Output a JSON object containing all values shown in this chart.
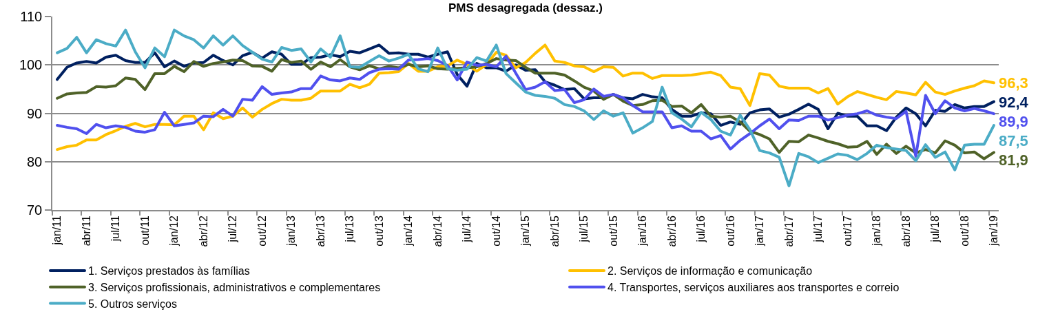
{
  "chart_data": {
    "type": "line",
    "title": "PMS desagregada (dessaz.)",
    "categories": [
      "jan/11",
      null,
      null,
      "abr/11",
      null,
      null,
      "jul/11",
      null,
      null,
      "out/11",
      null,
      null,
      "jan/12",
      null,
      null,
      "abr/12",
      null,
      null,
      "jul/12",
      null,
      null,
      "out/12",
      null,
      null,
      "jan/13",
      null,
      null,
      "abr/13",
      null,
      null,
      "jul/13",
      null,
      null,
      "out/13",
      null,
      null,
      "jan/14",
      null,
      null,
      "abr/14",
      null,
      null,
      "jul/14",
      null,
      null,
      "out/14",
      null,
      null,
      "jan/15",
      null,
      null,
      "abr/15",
      null,
      null,
      "jul/15",
      null,
      null,
      "out/15",
      null,
      null,
      "jan/16",
      null,
      null,
      "abr/16",
      null,
      null,
      "jul/16",
      null,
      null,
      "out/16",
      null,
      null,
      "jan/17",
      null,
      null,
      "abr/17",
      null,
      null,
      "jul/17",
      null,
      null,
      "out/17",
      null,
      null,
      "jan/18",
      null,
      null,
      "abr/18",
      null,
      null,
      "jul/18",
      null,
      null,
      "out/18",
      null,
      null,
      "jan/19"
    ],
    "ylim": [
      70,
      110
    ],
    "yticks": [
      70,
      80,
      90,
      100,
      110
    ],
    "grid": "y",
    "legend": "bottom",
    "series": [
      {
        "name": "1. Serviços prestados às famílias",
        "color": "#002060",
        "values": [
          97.0,
          99.5,
          100.4,
          100.7,
          100.4,
          101.6,
          102.0,
          100.9,
          100.5,
          100.5,
          102.5,
          99.6,
          100.8,
          99.7,
          100.4,
          100.5,
          102.0,
          100.9,
          100.0,
          101.9,
          102.6,
          101.4,
          102.7,
          102.2,
          100.1,
          100.1,
          101.5,
          101.6,
          102.1,
          101.7,
          102.8,
          102.5,
          103.3,
          104.1,
          102.4,
          102.5,
          102.2,
          102.2,
          101.6,
          102.2,
          102.7,
          98.0,
          95.6,
          100.3,
          99.4,
          99.4,
          98.7,
          100.0,
          98.9,
          99.0,
          96.5,
          95.8,
          94.9,
          95.1,
          93.0,
          93.2,
          93.2,
          93.9,
          93.2,
          93.0,
          93.9,
          93.4,
          93.2,
          90.8,
          89.4,
          89.4,
          90.1,
          89.9,
          87.5,
          88.2,
          87.7,
          90.1,
          90.7,
          90.9,
          89.2,
          89.8,
          90.8,
          91.9,
          90.8,
          86.8,
          90.0,
          89.4,
          89.4,
          87.4,
          87.4,
          86.4,
          89.2,
          91.1,
          89.9,
          87.4,
          90.6,
          90.4,
          91.8,
          91.1,
          91.4,
          91.4,
          92.4
        ],
        "value_labels": [
          null,
          null,
          null,
          null,
          null,
          null,
          null,
          null,
          null,
          null,
          null,
          null,
          null,
          null,
          null,
          null,
          null,
          null,
          null,
          null,
          null,
          null,
          null,
          null,
          null,
          null,
          null,
          null,
          null,
          null,
          null,
          null,
          null,
          null,
          null,
          null,
          null,
          null,
          null,
          null,
          null,
          null,
          null,
          null,
          null,
          null,
          null,
          null,
          null,
          null,
          null,
          null,
          null,
          null,
          null,
          null,
          null,
          null,
          null,
          null,
          null,
          null,
          null,
          null,
          null,
          null,
          null,
          null,
          null,
          null,
          null,
          null,
          null,
          null,
          null,
          null,
          null,
          null,
          null,
          null,
          null,
          null,
          null,
          null,
          null,
          null,
          null,
          null,
          null,
          null,
          null,
          null,
          null,
          null,
          null,
          null,
          "92,4"
        ]
      },
      {
        "name": "2. Serviços de informação e comunicação",
        "color": "#FFC000",
        "values": [
          82.5,
          83.1,
          83.4,
          84.5,
          84.5,
          85.6,
          86.4,
          87.3,
          87.9,
          87.2,
          87.7,
          87.7,
          87.6,
          89.4,
          89.4,
          86.6,
          90.1,
          88.9,
          89.4,
          91.1,
          89.2,
          90.8,
          92.0,
          92.9,
          92.7,
          92.7,
          93.1,
          94.6,
          94.6,
          94.6,
          96.0,
          95.3,
          96.0,
          98.3,
          98.4,
          98.6,
          100.3,
          98.7,
          98.7,
          99.6,
          99.8,
          101.0,
          100.1,
          98.7,
          100.1,
          102.6,
          102.0,
          99.4,
          100.5,
          102.4,
          104.1,
          100.8,
          100.5,
          99.8,
          99.6,
          98.6,
          99.6,
          99.5,
          97.7,
          98.3,
          98.3,
          97.2,
          97.8,
          97.8,
          97.8,
          97.9,
          98.2,
          98.5,
          97.8,
          95.4,
          95.1,
          91.6,
          98.2,
          97.9,
          95.6,
          95.2,
          95.2,
          95.2,
          94.2,
          95.1,
          91.9,
          93.4,
          94.5,
          93.9,
          93.3,
          92.8,
          94.5,
          94.2,
          93.8,
          96.4,
          94.4,
          93.9,
          94.6,
          95.2,
          95.7,
          96.7,
          96.3
        ],
        "value_labels": [
          null,
          null,
          null,
          null,
          null,
          null,
          null,
          null,
          null,
          null,
          null,
          null,
          null,
          null,
          null,
          null,
          null,
          null,
          null,
          null,
          null,
          null,
          null,
          null,
          null,
          null,
          null,
          null,
          null,
          null,
          null,
          null,
          null,
          null,
          null,
          null,
          null,
          null,
          null,
          null,
          null,
          null,
          null,
          null,
          null,
          null,
          null,
          null,
          null,
          null,
          null,
          null,
          null,
          null,
          null,
          null,
          null,
          null,
          null,
          null,
          null,
          null,
          null,
          null,
          null,
          null,
          null,
          null,
          null,
          null,
          null,
          null,
          null,
          null,
          null,
          null,
          null,
          null,
          null,
          null,
          null,
          null,
          null,
          null,
          null,
          null,
          null,
          null,
          null,
          null,
          null,
          null,
          null,
          null,
          null,
          null,
          "96,3"
        ]
      },
      {
        "name": "3. Serviços profissionais, administrativos e complementares",
        "color": "#4F6228",
        "values": [
          93.1,
          94.0,
          94.2,
          94.3,
          95.5,
          95.4,
          95.7,
          97.3,
          97.0,
          94.9,
          98.2,
          98.2,
          99.7,
          98.6,
          100.7,
          99.7,
          100.3,
          100.6,
          101.0,
          100.9,
          99.8,
          99.7,
          98.7,
          101.1,
          100.5,
          100.8,
          99.1,
          100.6,
          99.6,
          101.1,
          99.6,
          99.0,
          99.8,
          99.2,
          99.7,
          99.4,
          100.1,
          99.6,
          99.8,
          99.2,
          99.1,
          99.3,
          99.4,
          99.6,
          100.3,
          101.3,
          101.0,
          100.9,
          99.5,
          98.3,
          98.3,
          98.3,
          97.9,
          96.7,
          95.4,
          94.6,
          92.9,
          93.9,
          92.5,
          91.6,
          91.8,
          92.6,
          92.7,
          91.4,
          91.5,
          90.1,
          91.8,
          89.4,
          89.2,
          89.4,
          88.2,
          86.3,
          85.6,
          84.7,
          81.9,
          84.2,
          84.1,
          85.5,
          84.9,
          84.2,
          83.7,
          83.0,
          83.1,
          84.2,
          81.5,
          83.6,
          81.7,
          83.2,
          81.8,
          82.5,
          81.8,
          84.3,
          83.4,
          81.8,
          82.0,
          80.6,
          81.9
        ],
        "value_labels": [
          null,
          null,
          null,
          null,
          null,
          null,
          null,
          null,
          null,
          null,
          null,
          null,
          null,
          null,
          null,
          null,
          null,
          null,
          null,
          null,
          null,
          null,
          null,
          null,
          null,
          null,
          null,
          null,
          null,
          null,
          null,
          null,
          null,
          null,
          null,
          null,
          null,
          null,
          null,
          null,
          null,
          null,
          null,
          null,
          null,
          null,
          null,
          null,
          null,
          null,
          null,
          null,
          null,
          null,
          null,
          null,
          null,
          null,
          null,
          null,
          null,
          null,
          null,
          null,
          null,
          null,
          null,
          null,
          null,
          null,
          null,
          null,
          null,
          null,
          null,
          null,
          null,
          null,
          null,
          null,
          null,
          null,
          null,
          null,
          null,
          null,
          null,
          null,
          null,
          null,
          null,
          null,
          null,
          null,
          null,
          null,
          "81,9"
        ]
      },
      {
        "name": "4. Transportes, serviços auxiliares aos transportes e correio",
        "color": "#5050EE",
        "values": [
          87.5,
          87.1,
          86.8,
          85.8,
          87.7,
          87.0,
          87.4,
          87.1,
          86.3,
          86.1,
          86.6,
          90.2,
          87.4,
          87.7,
          88.0,
          89.4,
          89.3,
          90.8,
          89.4,
          92.9,
          92.7,
          95.5,
          93.9,
          94.2,
          94.4,
          95.1,
          95.1,
          97.7,
          96.9,
          96.7,
          97.3,
          97.0,
          98.4,
          99.1,
          99.2,
          99.1,
          101.0,
          101.1,
          101.3,
          100.9,
          99.9,
          96.9,
          100.6,
          99.9,
          100.1,
          99.6,
          101.8,
          98.3,
          94.9,
          95.4,
          96.5,
          94.7,
          94.9,
          92.2,
          92.8,
          95.0,
          93.5,
          93.9,
          93.2,
          91.6,
          90.3,
          90.3,
          90.3,
          87.0,
          87.4,
          86.3,
          86.3,
          84.7,
          85.4,
          82.6,
          84.4,
          85.8,
          87.4,
          88.8,
          86.8,
          88.6,
          88.5,
          89.4,
          89.4,
          88.6,
          89.1,
          89.6,
          89.9,
          90.5,
          89.6,
          89.2,
          88.9,
          90.4,
          81.1,
          93.7,
          89.9,
          92.6,
          91.1,
          90.5,
          91.0,
          90.5,
          89.9
        ],
        "value_labels": [
          null,
          null,
          null,
          null,
          null,
          null,
          null,
          null,
          null,
          null,
          null,
          null,
          null,
          null,
          null,
          null,
          null,
          null,
          null,
          null,
          null,
          null,
          null,
          null,
          null,
          null,
          null,
          null,
          null,
          null,
          null,
          null,
          null,
          null,
          null,
          null,
          null,
          null,
          null,
          null,
          null,
          null,
          null,
          null,
          null,
          null,
          null,
          null,
          null,
          null,
          null,
          null,
          null,
          null,
          null,
          null,
          null,
          null,
          null,
          null,
          null,
          null,
          null,
          null,
          null,
          null,
          null,
          null,
          null,
          null,
          null,
          null,
          null,
          null,
          null,
          null,
          null,
          null,
          null,
          null,
          null,
          null,
          null,
          null,
          null,
          null,
          null,
          null,
          null,
          null,
          null,
          null,
          null,
          null,
          null,
          null,
          "89,9"
        ]
      },
      {
        "name": "5. Outros serviços",
        "color": "#4BACC6",
        "values": [
          102.5,
          103.4,
          105.7,
          102.5,
          105.2,
          104.4,
          103.9,
          107.2,
          102.7,
          99.4,
          103.5,
          101.7,
          107.2,
          106.0,
          105.2,
          103.5,
          106.0,
          104.1,
          106.0,
          104.0,
          102.6,
          101.2,
          100.6,
          103.6,
          103.0,
          103.3,
          100.6,
          103.3,
          101.6,
          106.0,
          99.6,
          99.5,
          100.7,
          101.9,
          100.8,
          101.4,
          102.2,
          99.2,
          98.6,
          103.5,
          99.2,
          98.9,
          99.1,
          101.5,
          100.8,
          104.1,
          98.2,
          96.3,
          94.4,
          93.7,
          93.5,
          93.1,
          91.8,
          91.4,
          90.5,
          88.7,
          90.5,
          89.4,
          90.1,
          85.9,
          87.0,
          88.3,
          95.4,
          90.1,
          88.8,
          87.2,
          90.2,
          88.7,
          86.3,
          85.5,
          89.6,
          86.6,
          82.3,
          81.8,
          80.9,
          75.0,
          81.7,
          81.0,
          79.8,
          80.7,
          81.6,
          81.3,
          80.4,
          81.7,
          83.4,
          82.9,
          82.6,
          82.3,
          80.2,
          83.5,
          80.9,
          82.0,
          78.3,
          83.4,
          83.6,
          83.6,
          87.5
        ],
        "value_labels": [
          null,
          null,
          null,
          null,
          null,
          null,
          null,
          null,
          null,
          null,
          null,
          null,
          null,
          null,
          null,
          null,
          null,
          null,
          null,
          null,
          null,
          null,
          null,
          null,
          null,
          null,
          null,
          null,
          null,
          null,
          null,
          null,
          null,
          null,
          null,
          null,
          null,
          null,
          null,
          null,
          null,
          null,
          null,
          null,
          null,
          null,
          null,
          null,
          null,
          null,
          null,
          null,
          null,
          null,
          null,
          null,
          null,
          null,
          null,
          null,
          null,
          null,
          null,
          null,
          null,
          null,
          null,
          null,
          null,
          null,
          null,
          null,
          null,
          null,
          null,
          null,
          null,
          null,
          null,
          null,
          null,
          null,
          null,
          null,
          null,
          null,
          null,
          null,
          null,
          null,
          null,
          null,
          null,
          null,
          null,
          null,
          "87,5"
        ]
      }
    ]
  }
}
